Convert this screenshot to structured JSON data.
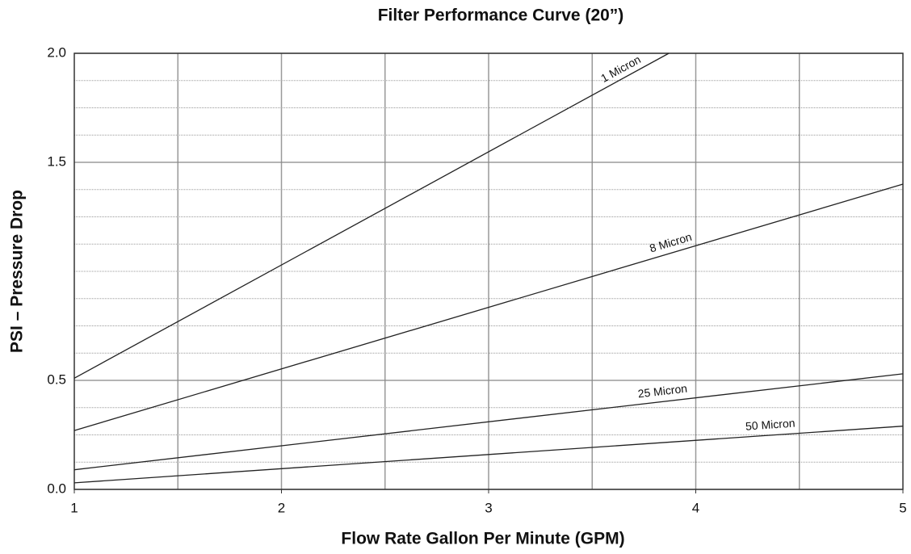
{
  "chart_data": {
    "type": "line",
    "title": "Filter Performance Curve (20”)",
    "xlabel": "Flow Rate Gallon Per Minute (GPM)",
    "ylabel": "PSI – Pressure Drop",
    "xlim": [
      1,
      5
    ],
    "xticks": [
      1,
      2,
      3,
      4,
      5
    ],
    "xgrid": [
      1.5,
      2,
      2.5,
      3,
      3.5,
      4,
      4.5
    ],
    "ylim": [
      0,
      2
    ],
    "yticks": [
      {
        "value": 0,
        "label": "0.0"
      },
      {
        "value": 0.5,
        "label": "0.5"
      },
      {
        "value": 1.5,
        "label": "1.5"
      },
      {
        "value": 2,
        "label": "2.0"
      }
    ],
    "ygrid": [
      0.125,
      0.25,
      0.375,
      0.5,
      0.625,
      0.75,
      0.875,
      1,
      1.125,
      1.25,
      1.375,
      1.5,
      1.625,
      1.75,
      1.875
    ],
    "grid": true,
    "series": [
      {
        "name": "1 Micron",
        "color": "#222222",
        "x": [
          1,
          3.87
        ],
        "values": [
          0.51,
          2.0
        ]
      },
      {
        "name": "8 Micron",
        "color": "#222222",
        "x": [
          1,
          5
        ],
        "values": [
          0.27,
          1.4
        ]
      },
      {
        "name": "25 Micron",
        "color": "#222222",
        "x": [
          1,
          5
        ],
        "values": [
          0.09,
          0.53
        ]
      },
      {
        "name": "50 Micron",
        "color": "#222222",
        "x": [
          1,
          5
        ],
        "values": [
          0.03,
          0.29
        ]
      }
    ]
  }
}
